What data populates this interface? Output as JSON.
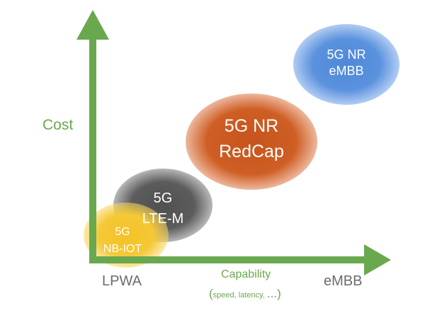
{
  "axes": {
    "y_label": "Cost",
    "x_label": "Capability",
    "x_sublabel_open": "(",
    "x_sublabel": "speed, latency, ",
    "x_sublabel_ellipsis": "...",
    "x_sublabel_close": ")",
    "x_start_label": "LPWA",
    "x_end_label": "eMBB",
    "color": "#6aa84f"
  },
  "technologies": [
    {
      "line1": "5G NR",
      "line2": "eMBB",
      "color": "#4f88d8"
    },
    {
      "line1": "5G NR",
      "line2": "RedCap",
      "color": "#c6551d"
    },
    {
      "line1": "5G",
      "line2": "LTE-M",
      "color": "#505050"
    },
    {
      "line1": "5G",
      "line2": "NB-IOT",
      "color": "#f3c226"
    }
  ]
}
